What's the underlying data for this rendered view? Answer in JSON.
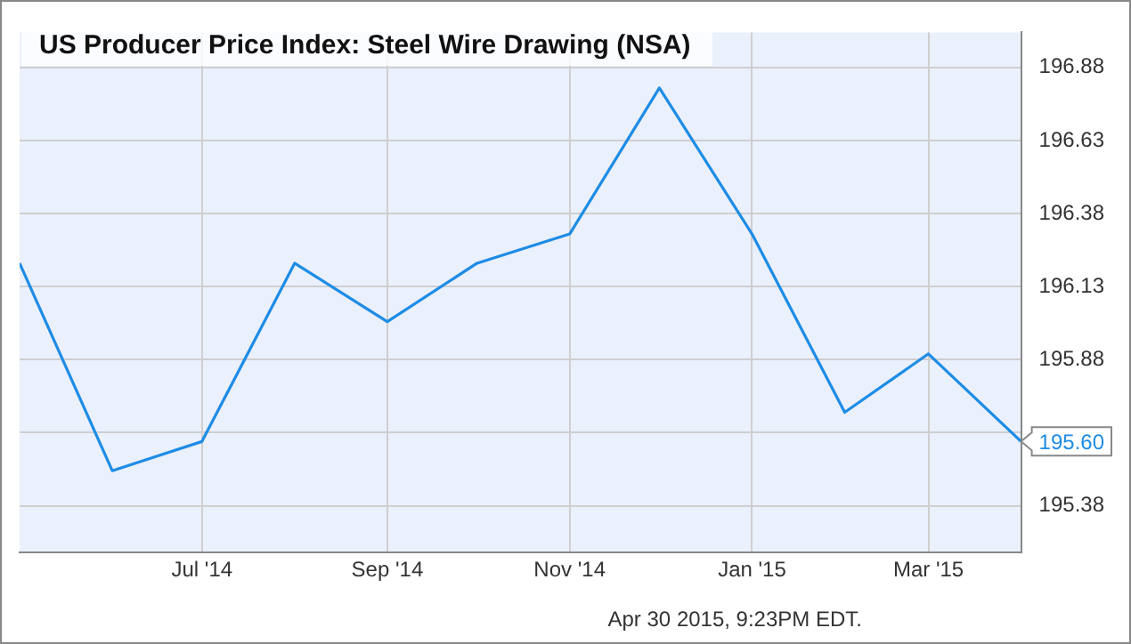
{
  "chart_data": {
    "type": "line",
    "title": "US Producer Price Index: Steel Wire Drawing (NSA)",
    "x": [
      "2014-05-01",
      "2014-06-01",
      "2014-07-01",
      "2014-08-01",
      "2014-09-01",
      "2014-10-01",
      "2014-11-01",
      "2014-12-01",
      "2015-01-01",
      "2015-02-01",
      "2015-03-01",
      "2015-04-01"
    ],
    "series": [
      {
        "color": "#1e8ce6",
        "values": [
          196.21,
          195.5,
          195.6,
          196.21,
          196.01,
          196.21,
          196.31,
          196.81,
          196.31,
          195.7,
          195.9,
          195.6
        ]
      }
    ],
    "xlim": [
      "2014-05-01",
      "2015-04-01"
    ],
    "xticks": [
      {
        "value": "2014-07-01",
        "label": "Jul '14"
      },
      {
        "value": "2014-09-01",
        "label": "Sep '14"
      },
      {
        "value": "2014-11-01",
        "label": "Nov '14"
      },
      {
        "value": "2015-01-01",
        "label": "Jan '15"
      },
      {
        "value": "2015-03-01",
        "label": "Mar '15"
      }
    ],
    "ylim": [
      195.22,
      197.0
    ],
    "yticks": [
      195.38,
      {
        "value": 195.63,
        "label": null
      },
      195.88,
      196.13,
      196.38,
      196.63,
      196.88
    ],
    "annotations": [
      {
        "text": "195.60",
        "x": "2015-04-01",
        "y": 195.6
      },
      "Apr 30 2015, 9:23PM EDT."
    ],
    "grid": true,
    "legend": false,
    "marker": "none",
    "line_style": "solid"
  }
}
